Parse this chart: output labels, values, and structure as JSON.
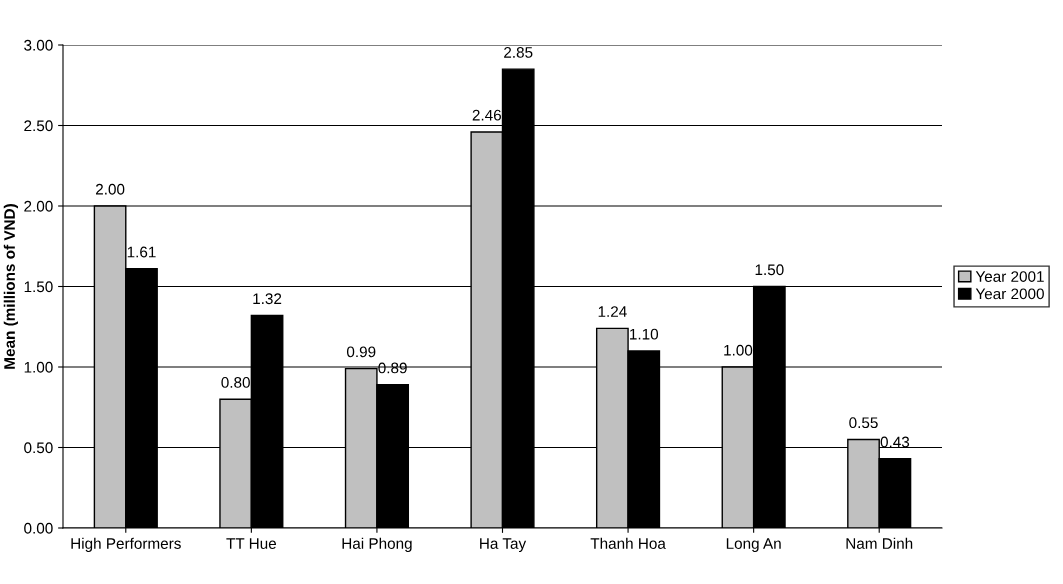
{
  "chart_data": {
    "type": "bar",
    "ylabel": "Mean (millions of VND)",
    "categories": [
      "High Performers",
      "TT Hue",
      "Hai Phong",
      "Ha Tay",
      "Thanh Hoa",
      "Long An",
      "Nam Dinh"
    ],
    "series": [
      {
        "name": "Year 2001",
        "color": "#c0c0c0",
        "values": [
          2.0,
          0.8,
          0.99,
          2.46,
          1.24,
          1.0,
          0.55
        ],
        "value_labels": [
          "2.00",
          "0.80",
          "0.99",
          "2.46",
          "1.24",
          "1.00",
          "0.55"
        ]
      },
      {
        "name": "Year 2000",
        "color": "#000000",
        "values": [
          1.61,
          1.32,
          0.89,
          2.85,
          1.1,
          1.5,
          0.43
        ],
        "value_labels": [
          "1.61",
          "1.32",
          "0.89",
          "2.85",
          "1.10",
          "1.50",
          "0.43"
        ]
      }
    ],
    "ylim": [
      0,
      3
    ],
    "yticks": [
      {
        "value": 0,
        "label": "0.00"
      },
      {
        "value": 0.5,
        "label": "0.50"
      },
      {
        "value": 1,
        "label": "1.00"
      },
      {
        "value": 1.5,
        "label": "1.50"
      },
      {
        "value": 2,
        "label": "2.00"
      },
      {
        "value": 2.5,
        "label": "2.50"
      },
      {
        "value": 3,
        "label": "3.00"
      }
    ],
    "grid": "y",
    "legend": "right"
  }
}
